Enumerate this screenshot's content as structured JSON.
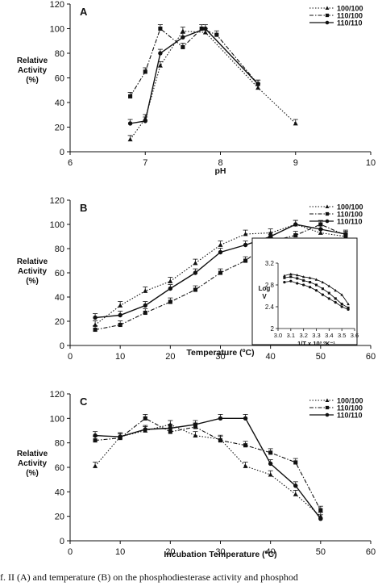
{
  "caption": "f. II (A) and temperature (B) on the phosphodiesterase activity and phosphod",
  "chart_data": [
    {
      "type": "line",
      "panel_label": "A",
      "xlabel": "pH",
      "ylabel_lines": [
        "Relative",
        "Activity",
        "(%)"
      ],
      "xlim": [
        6,
        10
      ],
      "ylim": [
        0,
        120
      ],
      "xticks": [
        6,
        7,
        8,
        9,
        10
      ],
      "yticks": [
        0,
        20,
        40,
        60,
        80,
        100,
        120
      ],
      "grid": false,
      "legend": "top-right",
      "series": [
        {
          "name": "100/100",
          "style": "dotted",
          "marker": "triangle",
          "color": "#111111",
          "x": [
            6.8,
            7.0,
            7.2,
            7.5,
            7.8,
            8.5,
            9.0
          ],
          "y": [
            10,
            27,
            70,
            98,
            97,
            52,
            23
          ]
        },
        {
          "name": "110/100",
          "style": "dashdot",
          "marker": "square",
          "color": "#111111",
          "x": [
            6.8,
            7.0,
            7.2,
            7.5,
            7.75,
            7.95,
            8.5
          ],
          "y": [
            45,
            65,
            100,
            85,
            100,
            95,
            55
          ]
        },
        {
          "name": "110/110",
          "style": "solid",
          "marker": "circle",
          "color": "#111111",
          "x": [
            6.8,
            7.0,
            7.2,
            7.5,
            7.8,
            8.5
          ],
          "y": [
            23,
            25,
            80,
            93,
            100,
            55
          ]
        }
      ]
    },
    {
      "type": "line",
      "panel_label": "B",
      "xlabel": "Temperature (ºC)",
      "ylabel_lines": [
        "Relative",
        "Activity",
        "(%)"
      ],
      "xlim": [
        0,
        60
      ],
      "ylim": [
        0,
        120
      ],
      "xticks": [
        0,
        10,
        20,
        30,
        40,
        50,
        60
      ],
      "yticks": [
        0,
        20,
        40,
        60,
        80,
        100,
        120
      ],
      "grid": false,
      "legend": "top-right",
      "series": [
        {
          "name": "100/100",
          "style": "dotted",
          "marker": "triangle",
          "color": "#111111",
          "x": [
            5,
            10,
            15,
            20,
            25,
            30,
            35,
            40,
            45,
            50,
            55
          ],
          "y": [
            17,
            33,
            45,
            53,
            68,
            83,
            92,
            93,
            100,
            93,
            90
          ]
        },
        {
          "name": "110/100",
          "style": "dashdot",
          "marker": "square",
          "color": "#111111",
          "x": [
            5,
            10,
            15,
            20,
            25,
            30,
            35,
            40,
            45,
            50,
            55
          ],
          "y": [
            13,
            17,
            27,
            36,
            46,
            60,
            70,
            86,
            91,
            100,
            91
          ]
        },
        {
          "name": "110/110",
          "style": "solid",
          "marker": "circle",
          "color": "#111111",
          "x": [
            5,
            10,
            15,
            20,
            25,
            30,
            35,
            40,
            45,
            50,
            55
          ],
          "y": [
            23,
            25,
            33,
            47,
            60,
            77,
            83,
            90,
            100,
            96,
            92
          ]
        }
      ],
      "inset": {
        "type": "line",
        "xlabel": "1/T x 10³ ºK⁻¹",
        "ylabel_lines": [
          "Log",
          "V"
        ],
        "xlim": [
          3.0,
          3.6
        ],
        "ylim": [
          2.0,
          3.2
        ],
        "xticks": [
          3.0,
          3.1,
          3.2,
          3.3,
          3.4,
          3.5,
          3.6
        ],
        "yticks": [
          2.0,
          2.4,
          2.8,
          3.2
        ],
        "series": [
          {
            "name": "100/100",
            "style": "solid",
            "marker": "triangle",
            "x": [
              3.05,
              3.1,
              3.15,
              3.2,
              3.25,
              3.3,
              3.35,
              3.4,
              3.45,
              3.5,
              3.55
            ],
            "y": [
              2.97,
              3.0,
              2.98,
              2.95,
              2.93,
              2.9,
              2.85,
              2.78,
              2.7,
              2.62,
              2.45
            ]
          },
          {
            "name": "110/100",
            "style": "solid",
            "marker": "square",
            "x": [
              3.05,
              3.1,
              3.15,
              3.2,
              3.25,
              3.3,
              3.35,
              3.4,
              3.45,
              3.5,
              3.55
            ],
            "y": [
              2.93,
              2.95,
              2.92,
              2.88,
              2.85,
              2.8,
              2.73,
              2.65,
              2.55,
              2.45,
              2.38
            ]
          },
          {
            "name": "110/110",
            "style": "solid",
            "marker": "circle",
            "x": [
              3.05,
              3.1,
              3.15,
              3.2,
              3.25,
              3.3,
              3.35,
              3.4,
              3.45,
              3.5,
              3.55
            ],
            "y": [
              2.85,
              2.87,
              2.83,
              2.8,
              2.76,
              2.7,
              2.62,
              2.55,
              2.48,
              2.4,
              2.35
            ]
          }
        ]
      }
    },
    {
      "type": "line",
      "panel_label": "C",
      "xlabel": "Incubation Temperature (ºC)",
      "ylabel_lines": [
        "Relative",
        "Activity",
        "(%)"
      ],
      "xlim": [
        0,
        60
      ],
      "ylim": [
        0,
        120
      ],
      "xticks": [
        0,
        10,
        20,
        30,
        40,
        50,
        60
      ],
      "yticks": [
        0,
        20,
        40,
        60,
        80,
        100,
        120
      ],
      "grid": false,
      "legend": "top-right",
      "series": [
        {
          "name": "100/100",
          "style": "dotted",
          "marker": "triangle",
          "color": "#111111",
          "x": [
            5,
            10,
            15,
            20,
            25,
            30,
            35,
            40,
            45,
            50
          ],
          "y": [
            61,
            85,
            90,
            95,
            86,
            83,
            61,
            54,
            38,
            20
          ]
        },
        {
          "name": "110/100",
          "style": "dashdot",
          "marker": "square",
          "color": "#111111",
          "x": [
            5,
            10,
            15,
            20,
            25,
            30,
            35,
            40,
            45,
            50
          ],
          "y": [
            82,
            84,
            100,
            89,
            93,
            82,
            78,
            72,
            64,
            25
          ]
        },
        {
          "name": "110/110",
          "style": "solid",
          "marker": "circle",
          "color": "#111111",
          "x": [
            5,
            10,
            15,
            20,
            25,
            30,
            35,
            40,
            45,
            50
          ],
          "y": [
            86,
            85,
            91,
            92,
            95,
            100,
            100,
            63,
            45,
            18
          ]
        }
      ]
    }
  ]
}
